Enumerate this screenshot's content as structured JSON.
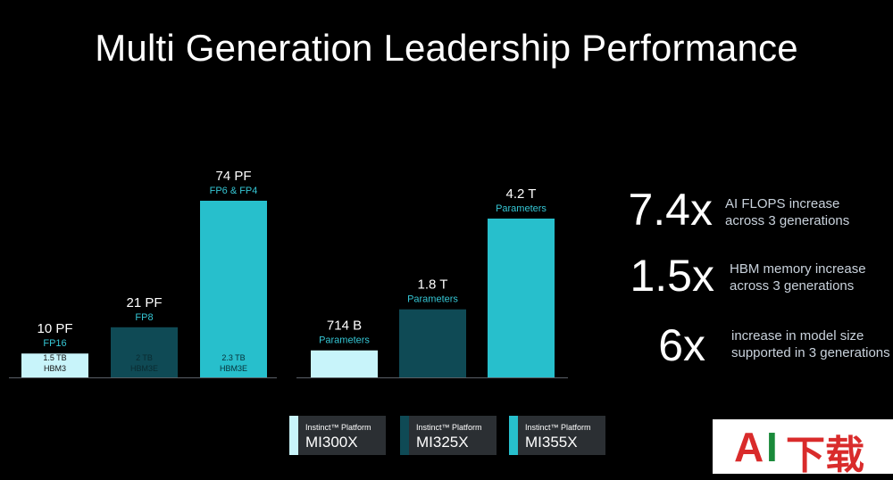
{
  "title": "Multi Generation Leadership Performance",
  "colors": {
    "mi300x": "#c8f4fa",
    "mi325x": "#0f4a55",
    "mi355x": "#27bfcc",
    "accent_text": "#35c6d4"
  },
  "chart_data": [
    {
      "type": "bar",
      "categories": [
        "MI300X",
        "MI325X",
        "MI355X"
      ],
      "values": [
        10,
        21,
        74
      ],
      "unit": "PF",
      "value_labels": [
        "10 PF",
        "21 PF",
        "74 PF"
      ],
      "precision_labels": [
        "FP16",
        "FP8",
        "FP6 & FP4"
      ],
      "memory_labels": [
        [
          "1.5 TB",
          "HBM3"
        ],
        [
          "2 TB",
          "HBM3E"
        ],
        [
          "2.3 TB",
          "HBM3E"
        ]
      ],
      "ylim": [
        0,
        80
      ]
    },
    {
      "type": "bar",
      "categories": [
        "MI300X",
        "MI325X",
        "MI355X"
      ],
      "values": [
        0.714,
        1.8,
        4.2
      ],
      "unit": "T parameters",
      "value_labels": [
        "714 B",
        "1.8 T",
        "4.2 T"
      ],
      "sub_labels": [
        "Parameters",
        "Parameters",
        "Parameters"
      ],
      "ylim": [
        0,
        5.5
      ]
    }
  ],
  "stats": [
    {
      "value": "7.4x",
      "line1": "AI FLOPS increase",
      "line2": "across 3 generations"
    },
    {
      "value": "1.5x",
      "line1": "HBM memory increase",
      "line2": "across 3 generations"
    },
    {
      "value": "6x",
      "line1": "increase in model size",
      "line2": "supported in 3 generations"
    }
  ],
  "legend": [
    {
      "small": "Instinct™ Platform",
      "name": "MI300X"
    },
    {
      "small": "Instinct™ Platform",
      "name": "MI325X"
    },
    {
      "small": "Instinct™ Platform",
      "name": "MI355X"
    }
  ],
  "watermark": {
    "a": "A",
    "i": "I",
    "rest": "下载"
  }
}
